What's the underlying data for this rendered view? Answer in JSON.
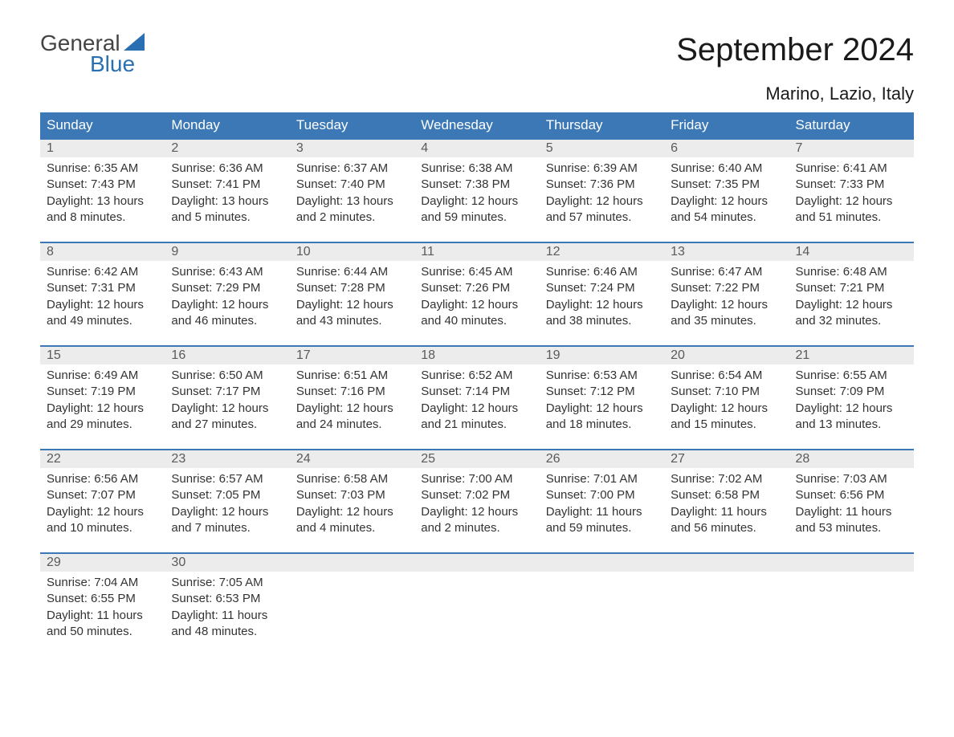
{
  "brand": {
    "line1": "General",
    "line2": "Blue",
    "accent_color": "#2b6fb3",
    "text_color": "#444444"
  },
  "title": "September 2024",
  "location": "Marino, Lazio, Italy",
  "colors": {
    "header_bg": "#3b78b5",
    "header_text": "#ffffff",
    "daynum_bg": "#ececec",
    "daynum_border": "#3b78b5",
    "body_text": "#333333",
    "page_bg": "#ffffff"
  },
  "weekdays": [
    "Sunday",
    "Monday",
    "Tuesday",
    "Wednesday",
    "Thursday",
    "Friday",
    "Saturday"
  ],
  "days": [
    {
      "n": "1",
      "sunrise": "Sunrise: 6:35 AM",
      "sunset": "Sunset: 7:43 PM",
      "day1": "Daylight: 13 hours",
      "day2": "and 8 minutes."
    },
    {
      "n": "2",
      "sunrise": "Sunrise: 6:36 AM",
      "sunset": "Sunset: 7:41 PM",
      "day1": "Daylight: 13 hours",
      "day2": "and 5 minutes."
    },
    {
      "n": "3",
      "sunrise": "Sunrise: 6:37 AM",
      "sunset": "Sunset: 7:40 PM",
      "day1": "Daylight: 13 hours",
      "day2": "and 2 minutes."
    },
    {
      "n": "4",
      "sunrise": "Sunrise: 6:38 AM",
      "sunset": "Sunset: 7:38 PM",
      "day1": "Daylight: 12 hours",
      "day2": "and 59 minutes."
    },
    {
      "n": "5",
      "sunrise": "Sunrise: 6:39 AM",
      "sunset": "Sunset: 7:36 PM",
      "day1": "Daylight: 12 hours",
      "day2": "and 57 minutes."
    },
    {
      "n": "6",
      "sunrise": "Sunrise: 6:40 AM",
      "sunset": "Sunset: 7:35 PM",
      "day1": "Daylight: 12 hours",
      "day2": "and 54 minutes."
    },
    {
      "n": "7",
      "sunrise": "Sunrise: 6:41 AM",
      "sunset": "Sunset: 7:33 PM",
      "day1": "Daylight: 12 hours",
      "day2": "and 51 minutes."
    },
    {
      "n": "8",
      "sunrise": "Sunrise: 6:42 AM",
      "sunset": "Sunset: 7:31 PM",
      "day1": "Daylight: 12 hours",
      "day2": "and 49 minutes."
    },
    {
      "n": "9",
      "sunrise": "Sunrise: 6:43 AM",
      "sunset": "Sunset: 7:29 PM",
      "day1": "Daylight: 12 hours",
      "day2": "and 46 minutes."
    },
    {
      "n": "10",
      "sunrise": "Sunrise: 6:44 AM",
      "sunset": "Sunset: 7:28 PM",
      "day1": "Daylight: 12 hours",
      "day2": "and 43 minutes."
    },
    {
      "n": "11",
      "sunrise": "Sunrise: 6:45 AM",
      "sunset": "Sunset: 7:26 PM",
      "day1": "Daylight: 12 hours",
      "day2": "and 40 minutes."
    },
    {
      "n": "12",
      "sunrise": "Sunrise: 6:46 AM",
      "sunset": "Sunset: 7:24 PM",
      "day1": "Daylight: 12 hours",
      "day2": "and 38 minutes."
    },
    {
      "n": "13",
      "sunrise": "Sunrise: 6:47 AM",
      "sunset": "Sunset: 7:22 PM",
      "day1": "Daylight: 12 hours",
      "day2": "and 35 minutes."
    },
    {
      "n": "14",
      "sunrise": "Sunrise: 6:48 AM",
      "sunset": "Sunset: 7:21 PM",
      "day1": "Daylight: 12 hours",
      "day2": "and 32 minutes."
    },
    {
      "n": "15",
      "sunrise": "Sunrise: 6:49 AM",
      "sunset": "Sunset: 7:19 PM",
      "day1": "Daylight: 12 hours",
      "day2": "and 29 minutes."
    },
    {
      "n": "16",
      "sunrise": "Sunrise: 6:50 AM",
      "sunset": "Sunset: 7:17 PM",
      "day1": "Daylight: 12 hours",
      "day2": "and 27 minutes."
    },
    {
      "n": "17",
      "sunrise": "Sunrise: 6:51 AM",
      "sunset": "Sunset: 7:16 PM",
      "day1": "Daylight: 12 hours",
      "day2": "and 24 minutes."
    },
    {
      "n": "18",
      "sunrise": "Sunrise: 6:52 AM",
      "sunset": "Sunset: 7:14 PM",
      "day1": "Daylight: 12 hours",
      "day2": "and 21 minutes."
    },
    {
      "n": "19",
      "sunrise": "Sunrise: 6:53 AM",
      "sunset": "Sunset: 7:12 PM",
      "day1": "Daylight: 12 hours",
      "day2": "and 18 minutes."
    },
    {
      "n": "20",
      "sunrise": "Sunrise: 6:54 AM",
      "sunset": "Sunset: 7:10 PM",
      "day1": "Daylight: 12 hours",
      "day2": "and 15 minutes."
    },
    {
      "n": "21",
      "sunrise": "Sunrise: 6:55 AM",
      "sunset": "Sunset: 7:09 PM",
      "day1": "Daylight: 12 hours",
      "day2": "and 13 minutes."
    },
    {
      "n": "22",
      "sunrise": "Sunrise: 6:56 AM",
      "sunset": "Sunset: 7:07 PM",
      "day1": "Daylight: 12 hours",
      "day2": "and 10 minutes."
    },
    {
      "n": "23",
      "sunrise": "Sunrise: 6:57 AM",
      "sunset": "Sunset: 7:05 PM",
      "day1": "Daylight: 12 hours",
      "day2": "and 7 minutes."
    },
    {
      "n": "24",
      "sunrise": "Sunrise: 6:58 AM",
      "sunset": "Sunset: 7:03 PM",
      "day1": "Daylight: 12 hours",
      "day2": "and 4 minutes."
    },
    {
      "n": "25",
      "sunrise": "Sunrise: 7:00 AM",
      "sunset": "Sunset: 7:02 PM",
      "day1": "Daylight: 12 hours",
      "day2": "and 2 minutes."
    },
    {
      "n": "26",
      "sunrise": "Sunrise: 7:01 AM",
      "sunset": "Sunset: 7:00 PM",
      "day1": "Daylight: 11 hours",
      "day2": "and 59 minutes."
    },
    {
      "n": "27",
      "sunrise": "Sunrise: 7:02 AM",
      "sunset": "Sunset: 6:58 PM",
      "day1": "Daylight: 11 hours",
      "day2": "and 56 minutes."
    },
    {
      "n": "28",
      "sunrise": "Sunrise: 7:03 AM",
      "sunset": "Sunset: 6:56 PM",
      "day1": "Daylight: 11 hours",
      "day2": "and 53 minutes."
    },
    {
      "n": "29",
      "sunrise": "Sunrise: 7:04 AM",
      "sunset": "Sunset: 6:55 PM",
      "day1": "Daylight: 11 hours",
      "day2": "and 50 minutes."
    },
    {
      "n": "30",
      "sunrise": "Sunrise: 7:05 AM",
      "sunset": "Sunset: 6:53 PM",
      "day1": "Daylight: 11 hours",
      "day2": "and 48 minutes."
    }
  ],
  "layout": {
    "columns": 7,
    "start_weekday_index": 0,
    "total_cells": 35
  }
}
